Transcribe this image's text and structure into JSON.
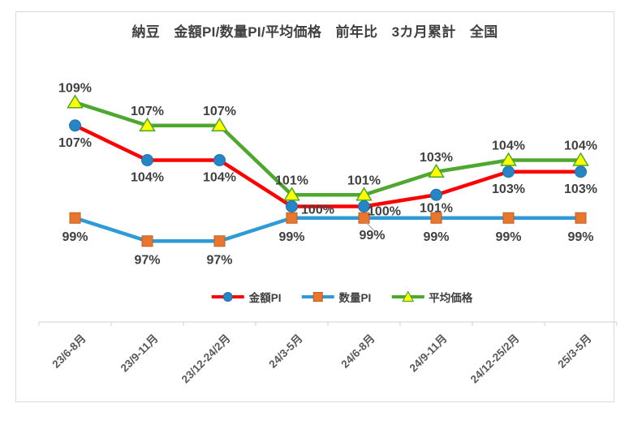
{
  "frame": {
    "border_color": "#D9D9D9",
    "background": "#FFFFFF"
  },
  "chart_data": {
    "type": "line",
    "title": "納豆　金額PI/数量PI/平均価格　前年比　3カ月累計　全国",
    "categories": [
      "23/6-8月",
      "23/9-11月",
      "23/12-24/2月",
      "24/3-5月",
      "24/6-8月",
      "24/9-11月",
      "24/12-25/2月",
      "25/3-5月"
    ],
    "series": [
      {
        "name": "金額PI",
        "values": [
          107,
          104,
          104,
          100,
          100,
          101,
          103,
          103
        ],
        "line_color": "#FF0000",
        "marker": "circle",
        "marker_fill": "#2585C5",
        "marker_stroke": "#1F72AC"
      },
      {
        "name": "数量PI",
        "values": [
          99,
          97,
          97,
          99,
          99,
          99,
          99,
          99
        ],
        "line_color": "#2E9BD6",
        "marker": "square",
        "marker_fill": "#E8762C",
        "marker_stroke": "#C25E1E"
      },
      {
        "name": "平均価格",
        "values": [
          109,
          107,
          107,
          101,
          101,
          103,
          104,
          104
        ],
        "line_color": "#4EA72E",
        "marker": "triangle",
        "marker_fill": "#FFFF00",
        "marker_stroke": "#4EA72E"
      }
    ],
    "data_label_format": "{v}%",
    "data_label_color": "#404040",
    "axis_label_color": "#595959",
    "axis_line_color": "#D9D9D9",
    "leader_line_color": "#A6A6A6",
    "legend_position": "bottom",
    "grid": false,
    "y_axis": {
      "visible": false,
      "min": 90,
      "max": 112
    },
    "x_axis_labels_rotation_deg": -45
  }
}
